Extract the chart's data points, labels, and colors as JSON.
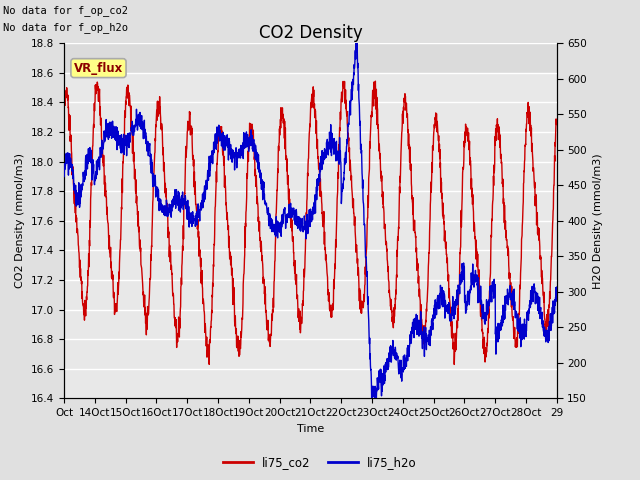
{
  "title": "CO2 Density",
  "xlabel": "Time",
  "ylabel_left": "CO2 Density (mmol/m3)",
  "ylabel_right": "H2O Density (mmol/m3)",
  "top_note1": "No data for f_op_co2",
  "top_note2": "No data for f_op_h2o",
  "vr_flux_label": "VR_flux",
  "ylim_left": [
    16.4,
    18.8
  ],
  "ylim_right": [
    150,
    650
  ],
  "xtick_labels": [
    "Oct",
    "14Oct",
    "15Oct",
    "16Oct",
    "17Oct",
    "18Oct",
    "19Oct",
    "20Oct",
    "21Oct",
    "22Oct",
    "23Oct",
    "24Oct",
    "25Oct",
    "26Oct",
    "27Oct",
    "28Oct",
    "29"
  ],
  "line_co2_color": "#cc0000",
  "line_h2o_color": "#0000cc",
  "legend_co2": "li75_co2",
  "legend_h2o": "li75_h2o",
  "bg_color": "#e0e0e0",
  "plot_bg_color": "#e8e8e8",
  "grid_color": "#ffffff",
  "title_fontsize": 12,
  "label_fontsize": 8,
  "tick_fontsize": 7.5,
  "note_fontsize": 7.5,
  "linewidth": 1.0
}
